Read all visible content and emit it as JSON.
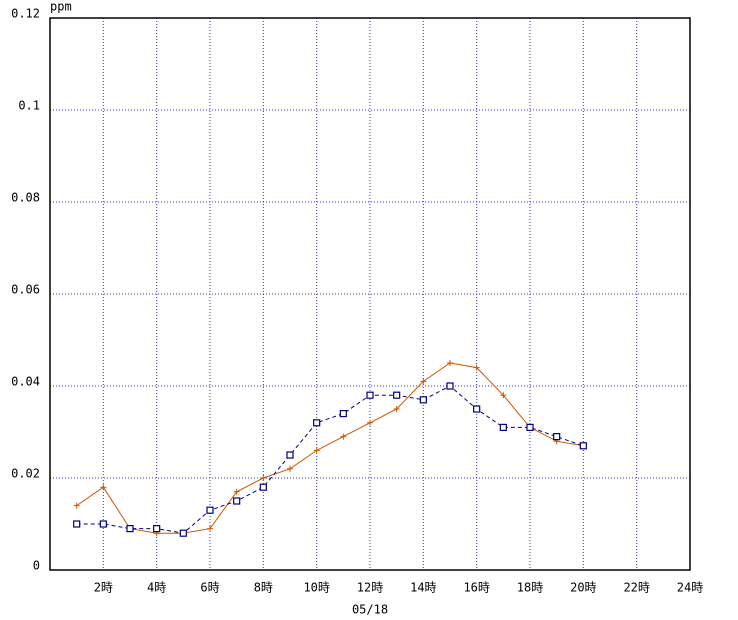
{
  "chart_data": {
    "type": "line",
    "y_unit": "ppm",
    "x_label": "05/18",
    "x": [
      1,
      2,
      3,
      4,
      5,
      6,
      7,
      8,
      9,
      10,
      11,
      12,
      13,
      14,
      15,
      16,
      17,
      18,
      19,
      20
    ],
    "series": [
      {
        "color": "#cc5500",
        "marker": "plus",
        "dash": false,
        "values": [
          0.014,
          0.018,
          0.009,
          0.008,
          0.008,
          0.009,
          0.017,
          0.02,
          0.022,
          0.026,
          0.029,
          0.032,
          0.035,
          0.041,
          0.045,
          0.044,
          0.038,
          0.031,
          0.028,
          0.027
        ]
      },
      {
        "color": "#000080",
        "marker": "square",
        "dash": true,
        "values": [
          0.01,
          0.01,
          0.009,
          0.009,
          0.008,
          0.013,
          0.015,
          0.018,
          0.025,
          0.032,
          0.034,
          0.038,
          0.038,
          0.037,
          0.04,
          0.035,
          0.031,
          0.031,
          0.029,
          0.027
        ]
      }
    ],
    "xlim": [
      0,
      24
    ],
    "xticks": [
      {
        "value": 2,
        "label": "2時"
      },
      {
        "value": 4,
        "label": "4時"
      },
      {
        "value": 6,
        "label": "6時"
      },
      {
        "value": 8,
        "label": "8時"
      },
      {
        "value": 10,
        "label": "10時"
      },
      {
        "value": 12,
        "label": "12時"
      },
      {
        "value": 14,
        "label": "14時"
      },
      {
        "value": 16,
        "label": "16時"
      },
      {
        "value": 18,
        "label": "18時"
      },
      {
        "value": 20,
        "label": "20時"
      },
      {
        "value": 22,
        "label": "22時"
      },
      {
        "value": 24,
        "label": "24時"
      }
    ],
    "ylim": [
      0,
      0.12
    ],
    "yticks": [
      0,
      0.02,
      0.04,
      0.06,
      0.08,
      0.1,
      0.12
    ],
    "grid": true
  }
}
